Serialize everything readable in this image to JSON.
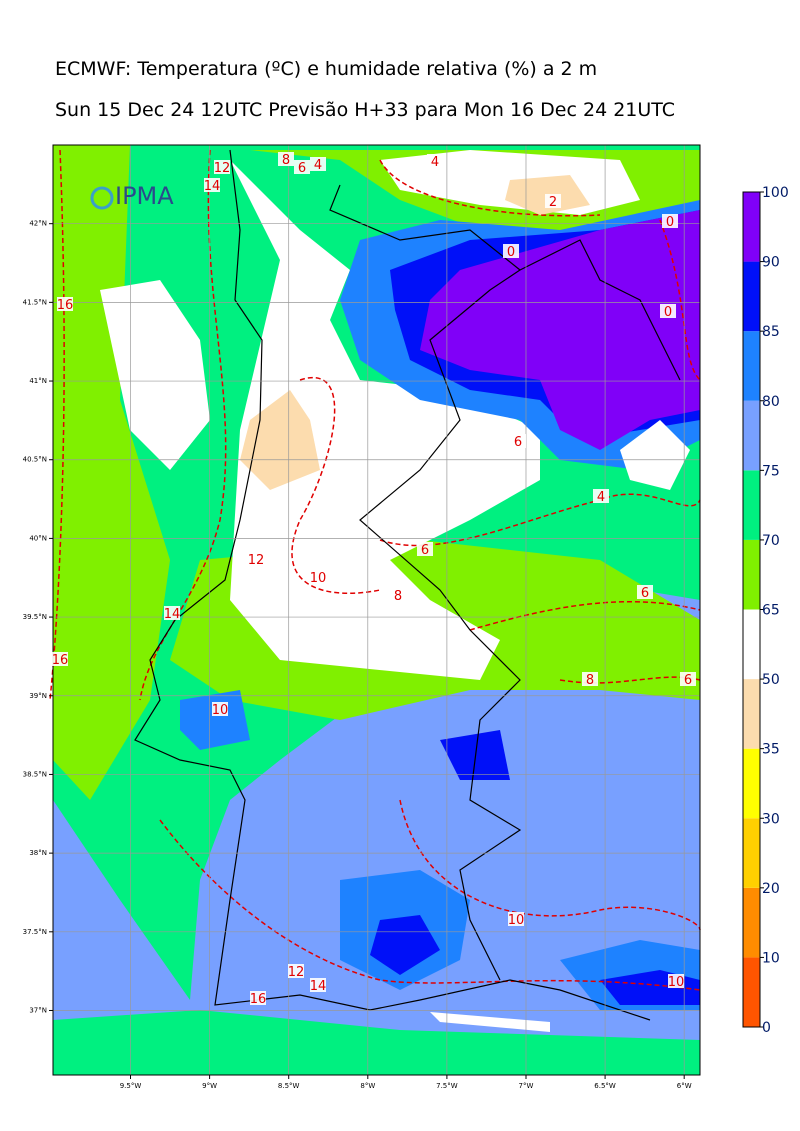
{
  "header": {
    "title": "ECMWF: Temperatura (ºC) e humidade relativa (%) a 2 m",
    "subtitle": "Sun 15 Dec 24 12UTC Previsão H+33 para Mon 16 Dec 24 21UTC"
  },
  "logo": "IPMA",
  "map": {
    "xlim": [
      -9.99,
      -5.9
    ],
    "ylim": [
      36.59,
      42.5
    ],
    "xticks": [
      {
        "value": -9.5,
        "label": "9.5°W"
      },
      {
        "value": -9,
        "label": "9°W"
      },
      {
        "value": -8.5,
        "label": "8.5°W"
      },
      {
        "value": -8,
        "label": "8°W"
      },
      {
        "value": -7.5,
        "label": "7.5°W"
      },
      {
        "value": -7,
        "label": "7°W"
      },
      {
        "value": -6.5,
        "label": "6.5°W"
      },
      {
        "value": -6,
        "label": "6°W"
      }
    ],
    "yticks": [
      {
        "value": 42,
        "label": "42°N"
      },
      {
        "value": 41.5,
        "label": "41.5°N"
      },
      {
        "value": 41,
        "label": "41°N"
      },
      {
        "value": 40.5,
        "label": "40.5°N"
      },
      {
        "value": 40,
        "label": "40°N"
      },
      {
        "value": 39.5,
        "label": "39.5°N"
      },
      {
        "value": 39,
        "label": "39°N"
      },
      {
        "value": 38.5,
        "label": "38.5°N"
      },
      {
        "value": 38,
        "label": "38°N"
      },
      {
        "value": 37.5,
        "label": "37.5°N"
      },
      {
        "value": 37,
        "label": "37°N"
      }
    ],
    "grid": true,
    "contour_labels": [
      "4",
      "2",
      "0",
      "0",
      "0",
      "6",
      "4",
      "6",
      "8",
      "6",
      "8",
      "6",
      "10",
      "12",
      "14",
      "16",
      "16",
      "10",
      "10",
      "12",
      "14",
      "16",
      "10",
      "14",
      "12",
      "8",
      "6",
      "4"
    ]
  },
  "colorbar": {
    "levels": [
      0,
      10,
      20,
      30,
      35,
      50,
      65,
      70,
      75,
      80,
      85,
      90,
      100
    ],
    "colors": [
      "#ff5500",
      "#ff8c00",
      "#ffd000",
      "#ffff00",
      "#fcdcae",
      "#ffffff",
      "#80f000",
      "#00f080",
      "#78a0ff",
      "#1e82ff",
      "#0010f8",
      "#8000f8"
    ]
  }
}
